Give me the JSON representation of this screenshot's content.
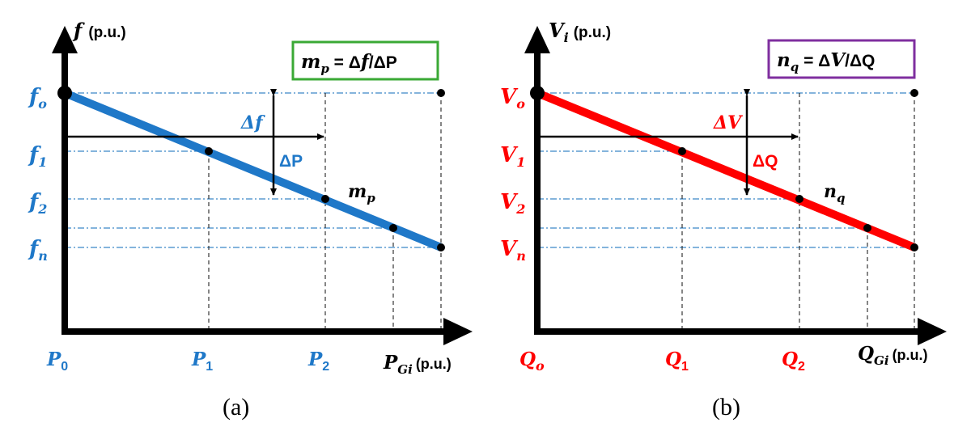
{
  "colors": {
    "panel_a": "#1f78c8",
    "panel_b": "#ff0000",
    "box_a": "#3aa935",
    "box_b": "#7f2f9f",
    "axis": "#000000",
    "grid": "#3a86c8"
  },
  "panels": [
    {
      "id": "a",
      "y_axis": {
        "symbol": "f",
        "sub": "",
        "unit": "(p.u.)"
      },
      "x_axis": {
        "symbol": "P",
        "sub": "Gi",
        "unit": "(p.u.)"
      },
      "formula": {
        "lhs": "m",
        "lhs_sub": "p",
        "rhs_pre": " = Δ",
        "rhs_var1": "f",
        "rhs_mid": "/ΔP"
      },
      "y_ticks": [
        {
          "sym": "f",
          "sub": "o"
        },
        {
          "sym": "f",
          "sub": "1"
        },
        {
          "sym": "f",
          "sub": "2"
        },
        {
          "sym": "f",
          "sub": "n"
        }
      ],
      "x_ticks": [
        {
          "sym": "P",
          "sub": "0"
        },
        {
          "sym": "P",
          "sub": "1"
        },
        {
          "sym": "P",
          "sub": "2"
        }
      ],
      "delta_y": "Δf",
      "delta_x": "ΔP",
      "slope_label": {
        "sym": "m",
        "sub": "p"
      },
      "caption": "(a)"
    },
    {
      "id": "b",
      "y_axis": {
        "symbol": "V",
        "sub": "i",
        "unit": "(p.u.)"
      },
      "x_axis": {
        "symbol": "Q",
        "sub": "Gi",
        "unit": "(p.u.)"
      },
      "formula": {
        "lhs": "n",
        "lhs_sub": "q",
        "rhs_pre": " = Δ",
        "rhs_var1": "V",
        "rhs_mid": "/ΔQ"
      },
      "y_ticks": [
        {
          "sym": "V",
          "sub": "o"
        },
        {
          "sym": "V",
          "sub": "1"
        },
        {
          "sym": "V",
          "sub": "2"
        },
        {
          "sym": "V",
          "sub": "n"
        }
      ],
      "x_ticks": [
        {
          "sym": "Q",
          "sub": "o"
        },
        {
          "sym": "Q",
          "sub": "1"
        },
        {
          "sym": "Q",
          "sub": "2"
        }
      ],
      "delta_y": "ΔV",
      "delta_x": "ΔQ",
      "slope_label": {
        "sym": "n",
        "sub": "q"
      },
      "caption": "(b)"
    }
  ]
}
